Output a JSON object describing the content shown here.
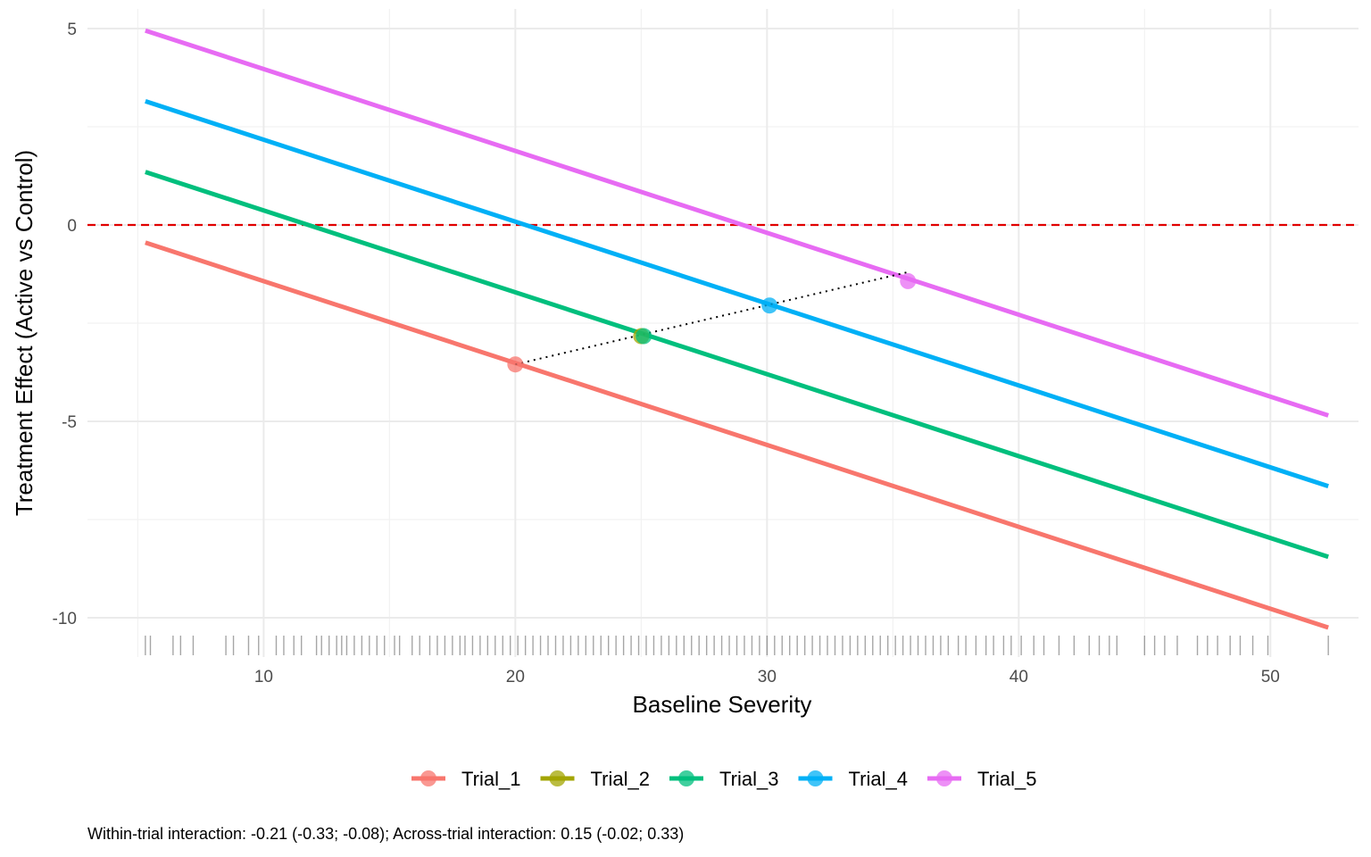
{
  "chart_data": {
    "type": "line",
    "title": "",
    "xlabel": "Baseline Severity",
    "ylabel": "Treatment Effect (Active vs Control)",
    "xlim": [
      3,
      53.5
    ],
    "ylim": [
      -11,
      5.5
    ],
    "x_ticks": [
      10,
      20,
      30,
      40,
      50
    ],
    "y_ticks": [
      -10,
      -5,
      0,
      5
    ],
    "x_tick_labels": [
      "10",
      "20",
      "30",
      "40",
      "50"
    ],
    "y_tick_labels": [
      "-10",
      "-5",
      "0",
      "5"
    ],
    "grid": true,
    "reference_line": {
      "y": 0,
      "color": "#e00000",
      "style": "dashed"
    },
    "series": [
      {
        "name": "Trial_1",
        "color": "#F8766D",
        "x": [
          5.3,
          52.3
        ],
        "y": [
          -0.45,
          -10.25
        ],
        "mean_point": {
          "x": 20.0,
          "y": -3.55
        }
      },
      {
        "name": "Trial_2",
        "color": "#A3A500",
        "x": [],
        "y": [],
        "mean_point": {
          "x": 25.0,
          "y": -2.83
        }
      },
      {
        "name": "Trial_3",
        "color": "#00BF7D",
        "x": [
          5.3,
          52.3
        ],
        "y": [
          1.35,
          -8.45
        ],
        "mean_point": {
          "x": 25.1,
          "y": -2.83
        }
      },
      {
        "name": "Trial_4",
        "color": "#00B0F6",
        "x": [
          5.3,
          52.3
        ],
        "y": [
          3.15,
          -6.65
        ],
        "mean_point": {
          "x": 30.1,
          "y": -2.05
        }
      },
      {
        "name": "Trial_5",
        "color": "#E76BF3",
        "x": [
          5.3,
          52.3
        ],
        "y": [
          4.95,
          -4.85
        ],
        "mean_point": {
          "x": 35.6,
          "y": -1.43
        }
      }
    ],
    "across_trial_line": {
      "x": [
        20.0,
        35.6
      ],
      "y": [
        -3.55,
        -1.2
      ],
      "style": "dotted",
      "color": "#000000"
    },
    "rug_x": [
      5.3,
      5.5,
      6.4,
      6.7,
      7.2,
      8.5,
      8.8,
      9.4,
      9.8,
      10.5,
      10.8,
      11.2,
      11.5,
      12.1,
      12.3,
      12.6,
      12.9,
      13.1,
      13.3,
      13.6,
      13.9,
      14.2,
      14.5,
      14.8,
      15.2,
      15.4,
      15.9,
      16.2,
      16.6,
      16.9,
      17.2,
      17.5,
      17.8,
      18.0,
      18.3,
      18.6,
      18.9,
      19.2,
      19.5,
      19.8,
      20.1,
      20.4,
      20.7,
      21.0,
      21.3,
      21.6,
      21.9,
      22.2,
      22.5,
      22.8,
      23.1,
      23.4,
      23.7,
      24.0,
      24.3,
      24.6,
      24.9,
      25.2,
      25.5,
      25.8,
      26.1,
      26.4,
      26.7,
      27.0,
      27.3,
      27.6,
      27.9,
      28.2,
      28.5,
      28.8,
      29.1,
      29.4,
      29.7,
      30.0,
      30.3,
      30.6,
      30.9,
      31.2,
      31.5,
      31.8,
      32.1,
      32.4,
      32.7,
      33.0,
      33.3,
      33.6,
      33.9,
      34.2,
      34.5,
      34.8,
      35.1,
      35.4,
      35.7,
      36.0,
      36.3,
      36.6,
      36.9,
      37.2,
      37.6,
      37.9,
      38.3,
      38.7,
      39.0,
      39.4,
      39.7,
      40.1,
      40.6,
      41.0,
      41.6,
      42.2,
      42.8,
      43.2,
      43.6,
      43.9,
      45.0,
      45.4,
      45.8,
      46.3,
      47.1,
      47.5,
      47.9,
      48.4,
      48.8,
      49.3,
      49.9,
      52.3
    ],
    "caption": "Within-trial interaction: -0.21 (-0.33; -0.08); Across-trial interaction: 0.15 (-0.02; 0.33)",
    "legend_position": "bottom"
  }
}
